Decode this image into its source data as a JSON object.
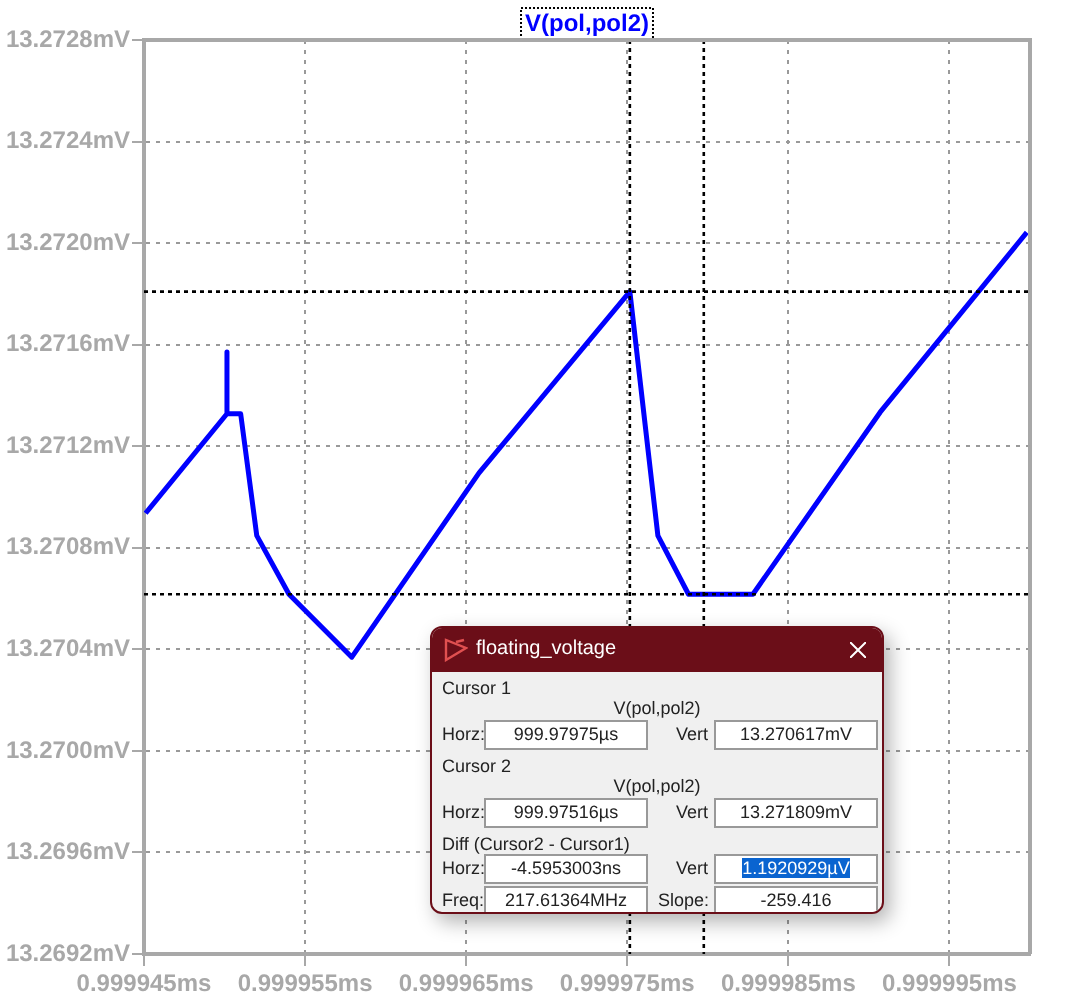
{
  "chart_data": {
    "type": "line",
    "title": "V(pol,pol2)",
    "series": [
      {
        "color": "#0000ff",
        "x": [
          0.9999451,
          0.99995015,
          0.99995015,
          0.99995015,
          0.999951,
          0.999952,
          0.999954,
          0.9999579,
          0.9999658,
          0.99997516,
          0.9999769,
          0.9999788,
          0.9999828,
          0.9999907,
          0.9999998
        ],
        "values": [
          13.270936,
          13.271328,
          13.271571,
          13.271328,
          13.271328,
          13.270848,
          13.270617,
          13.270369,
          13.271095,
          13.271809,
          13.270848,
          13.270617,
          13.270617,
          13.271334,
          13.272042
        ]
      }
    ],
    "xlim": [
      0.999945,
      1.0
    ],
    "xticks": [
      {
        "value": 0.999945,
        "label": "0.999945ms"
      },
      {
        "value": 0.999955,
        "label": "0.999955ms"
      },
      {
        "value": 0.999965,
        "label": "0.999965ms"
      },
      {
        "value": 0.999975,
        "label": "0.999975ms"
      },
      {
        "value": 0.999985,
        "label": "0.999985ms"
      },
      {
        "value": 0.999995,
        "label": "0.999995ms"
      }
    ],
    "ylim": [
      13.2692,
      13.2728
    ],
    "yticks": [
      {
        "value": 13.2692,
        "label": "13.2692mV"
      },
      {
        "value": 13.2696,
        "label": "13.2696mV"
      },
      {
        "value": 13.27,
        "label": "13.2700mV"
      },
      {
        "value": 13.2704,
        "label": "13.2704mV"
      },
      {
        "value": 13.2708,
        "label": "13.2708mV"
      },
      {
        "value": 13.2712,
        "label": "13.2712mV"
      },
      {
        "value": 13.2716,
        "label": "13.2716mV"
      },
      {
        "value": 13.272,
        "label": "13.2720mV"
      },
      {
        "value": 13.2724,
        "label": "13.2724mV"
      },
      {
        "value": 13.2728,
        "label": "13.2728mV"
      }
    ],
    "ref_lines": [
      {
        "axis": "x",
        "value": 0.99997516,
        "color": "#000000",
        "line_style": "dotted"
      },
      {
        "axis": "x",
        "value": 0.99997975,
        "color": "#000000",
        "line_style": "dotted"
      },
      {
        "axis": "y",
        "value": 13.271809,
        "color": "#000000",
        "line_style": "dotted"
      },
      {
        "axis": "y",
        "value": 13.270617,
        "color": "#000000",
        "line_style": "dotted"
      }
    ],
    "grid": true,
    "legend": false,
    "marker": "none",
    "line_style": "solid",
    "annotations": [
      "floating_voltage",
      "Cursor 1",
      "V(pol,pol2)",
      "Horz:",
      "999.97975µs",
      "Vert",
      "13.270617mV",
      "Cursor 2",
      "V(pol,pol2)",
      "Horz:",
      "999.97516µs",
      "Vert",
      "13.271809mV",
      "Diff (Cursor2 - Cursor1)",
      "Horz:",
      "-4.5953003ns",
      "Vert",
      "1.1920929µV",
      "Freq:",
      "217.61364MHz",
      "Slope:",
      "-259.416"
    ]
  }
}
